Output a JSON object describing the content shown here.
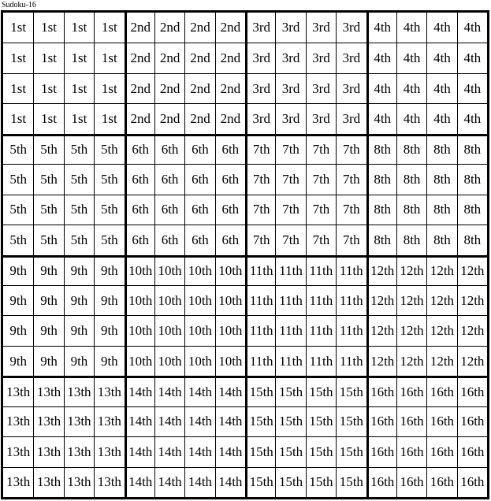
{
  "title": "Sudoku-16",
  "colors": {
    "background": "#ffffff",
    "border": "#000000",
    "text": "#000000"
  },
  "grid": {
    "size": 16,
    "box_size": 4,
    "box_labels": [
      "1st",
      "2nd",
      "3rd",
      "4th",
      "5th",
      "6th",
      "7th",
      "8th",
      "9th",
      "10th",
      "11th",
      "12th",
      "13th",
      "14th",
      "15th",
      "16th"
    ],
    "rows": [
      [
        "1st",
        "1st",
        "1st",
        "1st",
        "2nd",
        "2nd",
        "2nd",
        "2nd",
        "3rd",
        "3rd",
        "3rd",
        "3rd",
        "4th",
        "4th",
        "4th",
        "4th"
      ],
      [
        "1st",
        "1st",
        "1st",
        "1st",
        "2nd",
        "2nd",
        "2nd",
        "2nd",
        "3rd",
        "3rd",
        "3rd",
        "3rd",
        "4th",
        "4th",
        "4th",
        "4th"
      ],
      [
        "1st",
        "1st",
        "1st",
        "1st",
        "2nd",
        "2nd",
        "2nd",
        "2nd",
        "3rd",
        "3rd",
        "3rd",
        "3rd",
        "4th",
        "4th",
        "4th",
        "4th"
      ],
      [
        "1st",
        "1st",
        "1st",
        "1st",
        "2nd",
        "2nd",
        "2nd",
        "2nd",
        "3rd",
        "3rd",
        "3rd",
        "3rd",
        "4th",
        "4th",
        "4th",
        "4th"
      ],
      [
        "5th",
        "5th",
        "5th",
        "5th",
        "6th",
        "6th",
        "6th",
        "6th",
        "7th",
        "7th",
        "7th",
        "7th",
        "8th",
        "8th",
        "8th",
        "8th"
      ],
      [
        "5th",
        "5th",
        "5th",
        "5th",
        "6th",
        "6th",
        "6th",
        "6th",
        "7th",
        "7th",
        "7th",
        "7th",
        "8th",
        "8th",
        "8th",
        "8th"
      ],
      [
        "5th",
        "5th",
        "5th",
        "5th",
        "6th",
        "6th",
        "6th",
        "6th",
        "7th",
        "7th",
        "7th",
        "7th",
        "8th",
        "8th",
        "8th",
        "8th"
      ],
      [
        "5th",
        "5th",
        "5th",
        "5th",
        "6th",
        "6th",
        "6th",
        "6th",
        "7th",
        "7th",
        "7th",
        "7th",
        "8th",
        "8th",
        "8th",
        "8th"
      ],
      [
        "9th",
        "9th",
        "9th",
        "9th",
        "10th",
        "10th",
        "10th",
        "10th",
        "11th",
        "11th",
        "11th",
        "11th",
        "12th",
        "12th",
        "12th",
        "12th"
      ],
      [
        "9th",
        "9th",
        "9th",
        "9th",
        "10th",
        "10th",
        "10th",
        "10th",
        "11th",
        "11th",
        "11th",
        "11th",
        "12th",
        "12th",
        "12th",
        "12th"
      ],
      [
        "9th",
        "9th",
        "9th",
        "9th",
        "10th",
        "10th",
        "10th",
        "10th",
        "11th",
        "11th",
        "11th",
        "11th",
        "12th",
        "12th",
        "12th",
        "12th"
      ],
      [
        "9th",
        "9th",
        "9th",
        "9th",
        "10th",
        "10th",
        "10th",
        "10th",
        "11th",
        "11th",
        "11th",
        "11th",
        "12th",
        "12th",
        "12th",
        "12th"
      ],
      [
        "13th",
        "13th",
        "13th",
        "13th",
        "14th",
        "14th",
        "14th",
        "14th",
        "15th",
        "15th",
        "15th",
        "15th",
        "16th",
        "16th",
        "16th",
        "16th"
      ],
      [
        "13th",
        "13th",
        "13th",
        "13th",
        "14th",
        "14th",
        "14th",
        "14th",
        "15th",
        "15th",
        "15th",
        "15th",
        "16th",
        "16th",
        "16th",
        "16th"
      ],
      [
        "13th",
        "13th",
        "13th",
        "13th",
        "14th",
        "14th",
        "14th",
        "14th",
        "15th",
        "15th",
        "15th",
        "15th",
        "16th",
        "16th",
        "16th",
        "16th"
      ],
      [
        "13th",
        "13th",
        "13th",
        "13th",
        "14th",
        "14th",
        "14th",
        "14th",
        "15th",
        "15th",
        "15th",
        "15th",
        "16th",
        "16th",
        "16th",
        "16th"
      ]
    ]
  }
}
